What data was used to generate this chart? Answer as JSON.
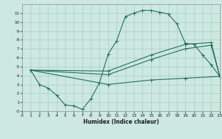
{
  "xlabel": "Humidex (Indice chaleur)",
  "bg_color": "#cce8e0",
  "grid_color": "#a8ccc4",
  "line_color": "#1a6b5a",
  "line1_x": [
    1,
    2,
    3,
    4,
    5,
    6,
    7,
    8,
    9,
    10,
    11,
    12,
    13,
    14,
    15,
    16,
    17,
    18,
    19,
    20,
    21,
    22,
    23
  ],
  "line1_y": [
    4.6,
    3.0,
    2.6,
    1.8,
    0.7,
    0.6,
    0.2,
    1.4,
    3.2,
    6.4,
    7.9,
    10.6,
    11.0,
    11.3,
    11.3,
    11.1,
    10.9,
    9.8,
    7.6,
    7.5,
    6.3,
    5.2,
    3.9
  ],
  "line2_x": [
    1,
    10,
    15,
    19,
    22,
    23
  ],
  "line2_y": [
    4.6,
    4.5,
    6.3,
    7.5,
    7.7,
    3.9
  ],
  "line3_x": [
    1,
    10,
    15,
    19,
    22,
    23
  ],
  "line3_y": [
    4.6,
    4.1,
    5.8,
    7.0,
    7.4,
    3.9
  ],
  "line4_x": [
    1,
    10,
    15,
    19,
    23
  ],
  "line4_y": [
    4.6,
    3.0,
    3.5,
    3.7,
    3.9
  ],
  "xlim": [
    0,
    23
  ],
  "ylim": [
    0,
    12
  ],
  "xticks": [
    0,
    1,
    2,
    3,
    4,
    5,
    6,
    7,
    8,
    9,
    10,
    11,
    12,
    13,
    14,
    15,
    16,
    17,
    18,
    19,
    20,
    21,
    22,
    23
  ],
  "yticks": [
    0,
    1,
    2,
    3,
    4,
    5,
    6,
    7,
    8,
    9,
    10,
    11
  ]
}
